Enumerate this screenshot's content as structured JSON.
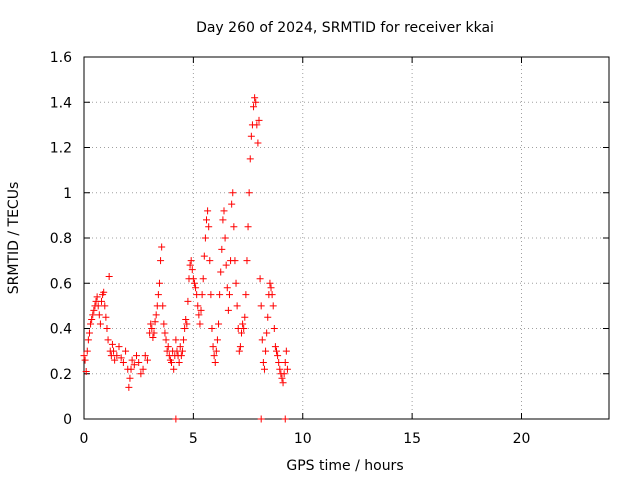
{
  "chart_data": {
    "type": "scatter",
    "title": "Day 260 of 2024, SRMTID for receiver kkai",
    "xlabel": "GPS time / hours",
    "ylabel": "SRMTID / TECUs",
    "xlim": [
      0,
      24
    ],
    "ylim": [
      0,
      1.6
    ],
    "x_ticks": [
      0,
      5,
      10,
      15,
      20
    ],
    "x_tick_labels": [
      "0",
      "5",
      "10",
      "15",
      "20"
    ],
    "y_ticks": [
      0,
      0.2,
      0.4,
      0.6,
      0.8,
      1.0,
      1.2,
      1.4,
      1.6
    ],
    "y_tick_labels": [
      "0",
      "0.2",
      "0.4",
      "0.6",
      "0.8",
      "1",
      "1.2",
      "1.4",
      "1.6"
    ],
    "grid": true,
    "marker": "+",
    "color": "#ff0000",
    "series": [
      {
        "name": "kkai",
        "points": [
          [
            0.0,
            0.28
          ],
          [
            0.05,
            0.26
          ],
          [
            0.1,
            0.21
          ],
          [
            0.15,
            0.3
          ],
          [
            0.2,
            0.35
          ],
          [
            0.25,
            0.38
          ],
          [
            0.3,
            0.42
          ],
          [
            0.35,
            0.44
          ],
          [
            0.4,
            0.46
          ],
          [
            0.45,
            0.48
          ],
          [
            0.5,
            0.5
          ],
          [
            0.55,
            0.52
          ],
          [
            0.6,
            0.54
          ],
          [
            0.65,
            0.5
          ],
          [
            0.7,
            0.46
          ],
          [
            0.75,
            0.42
          ],
          [
            0.8,
            0.52
          ],
          [
            0.85,
            0.55
          ],
          [
            0.9,
            0.56
          ],
          [
            0.95,
            0.5
          ],
          [
            1.0,
            0.45
          ],
          [
            1.05,
            0.4
          ],
          [
            1.1,
            0.35
          ],
          [
            1.15,
            0.63
          ],
          [
            1.2,
            0.3
          ],
          [
            1.25,
            0.28
          ],
          [
            1.3,
            0.33
          ],
          [
            1.35,
            0.3
          ],
          [
            1.4,
            0.26
          ],
          [
            1.5,
            0.28
          ],
          [
            1.6,
            0.32
          ],
          [
            1.7,
            0.27
          ],
          [
            1.8,
            0.25
          ],
          [
            1.9,
            0.3
          ],
          [
            2.0,
            0.22
          ],
          [
            2.05,
            0.14
          ],
          [
            2.1,
            0.18
          ],
          [
            2.15,
            0.22
          ],
          [
            2.2,
            0.26
          ],
          [
            2.3,
            0.24
          ],
          [
            2.4,
            0.28
          ],
          [
            2.5,
            0.25
          ],
          [
            2.6,
            0.2
          ],
          [
            2.7,
            0.22
          ],
          [
            2.8,
            0.28
          ],
          [
            2.9,
            0.26
          ],
          [
            3.0,
            0.38
          ],
          [
            3.05,
            0.42
          ],
          [
            3.1,
            0.4
          ],
          [
            3.15,
            0.36
          ],
          [
            3.2,
            0.38
          ],
          [
            3.25,
            0.43
          ],
          [
            3.3,
            0.46
          ],
          [
            3.35,
            0.5
          ],
          [
            3.4,
            0.55
          ],
          [
            3.45,
            0.6
          ],
          [
            3.5,
            0.7
          ],
          [
            3.55,
            0.76
          ],
          [
            3.6,
            0.5
          ],
          [
            3.65,
            0.42
          ],
          [
            3.7,
            0.38
          ],
          [
            3.75,
            0.35
          ],
          [
            3.8,
            0.3
          ],
          [
            3.85,
            0.32
          ],
          [
            3.9,
            0.28
          ],
          [
            3.95,
            0.26
          ],
          [
            4.0,
            0.25
          ],
          [
            4.05,
            0.3
          ],
          [
            4.1,
            0.22
          ],
          [
            4.15,
            0.28
          ],
          [
            4.2,
            0.35
          ],
          [
            4.25,
            0.3
          ],
          [
            4.3,
            0.28
          ],
          [
            4.35,
            0.25
          ],
          [
            4.4,
            0.32
          ],
          [
            4.45,
            0.28
          ],
          [
            4.5,
            0.3
          ],
          [
            4.55,
            0.35
          ],
          [
            4.6,
            0.4
          ],
          [
            4.65,
            0.44
          ],
          [
            4.7,
            0.42
          ],
          [
            4.75,
            0.52
          ],
          [
            4.8,
            0.62
          ],
          [
            4.85,
            0.68
          ],
          [
            4.9,
            0.7
          ],
          [
            4.95,
            0.66
          ],
          [
            5.0,
            0.62
          ],
          [
            5.05,
            0.6
          ],
          [
            5.1,
            0.58
          ],
          [
            5.15,
            0.55
          ],
          [
            5.2,
            0.5
          ],
          [
            5.25,
            0.46
          ],
          [
            5.3,
            0.42
          ],
          [
            5.35,
            0.48
          ],
          [
            5.4,
            0.55
          ],
          [
            5.45,
            0.62
          ],
          [
            5.5,
            0.72
          ],
          [
            5.55,
            0.8
          ],
          [
            5.6,
            0.88
          ],
          [
            5.65,
            0.92
          ],
          [
            5.7,
            0.85
          ],
          [
            5.75,
            0.7
          ],
          [
            5.8,
            0.55
          ],
          [
            5.85,
            0.4
          ],
          [
            5.9,
            0.32
          ],
          [
            5.95,
            0.28
          ],
          [
            6.0,
            0.25
          ],
          [
            6.05,
            0.3
          ],
          [
            6.1,
            0.35
          ],
          [
            6.15,
            0.42
          ],
          [
            6.2,
            0.55
          ],
          [
            6.25,
            0.65
          ],
          [
            6.3,
            0.75
          ],
          [
            6.35,
            0.88
          ],
          [
            6.4,
            0.92
          ],
          [
            6.45,
            0.8
          ],
          [
            6.5,
            0.68
          ],
          [
            6.55,
            0.58
          ],
          [
            6.6,
            0.48
          ],
          [
            6.65,
            0.55
          ],
          [
            6.7,
            0.7
          ],
          [
            6.75,
            0.95
          ],
          [
            6.8,
            1.0
          ],
          [
            6.85,
            0.85
          ],
          [
            6.9,
            0.7
          ],
          [
            6.95,
            0.6
          ],
          [
            7.0,
            0.5
          ],
          [
            7.05,
            0.4
          ],
          [
            7.1,
            0.3
          ],
          [
            7.15,
            0.32
          ],
          [
            7.2,
            0.38
          ],
          [
            7.25,
            0.42
          ],
          [
            7.3,
            0.4
          ],
          [
            7.35,
            0.45
          ],
          [
            7.4,
            0.55
          ],
          [
            7.45,
            0.7
          ],
          [
            7.5,
            0.85
          ],
          [
            7.55,
            1.0
          ],
          [
            7.6,
            1.15
          ],
          [
            7.65,
            1.25
          ],
          [
            7.7,
            1.3
          ],
          [
            7.75,
            1.38
          ],
          [
            7.8,
            1.42
          ],
          [
            7.85,
            1.4
          ],
          [
            7.9,
            1.3
          ],
          [
            7.95,
            1.22
          ],
          [
            8.0,
            1.32
          ],
          [
            8.05,
            0.62
          ],
          [
            8.1,
            0.5
          ],
          [
            8.15,
            0.35
          ],
          [
            8.2,
            0.25
          ],
          [
            8.25,
            0.22
          ],
          [
            8.3,
            0.3
          ],
          [
            8.35,
            0.38
          ],
          [
            8.4,
            0.45
          ],
          [
            8.45,
            0.55
          ],
          [
            8.5,
            0.6
          ],
          [
            8.55,
            0.58
          ],
          [
            8.6,
            0.55
          ],
          [
            8.65,
            0.5
          ],
          [
            8.7,
            0.4
          ],
          [
            8.75,
            0.32
          ],
          [
            8.8,
            0.3
          ],
          [
            8.85,
            0.28
          ],
          [
            8.9,
            0.25
          ],
          [
            8.95,
            0.22
          ],
          [
            9.0,
            0.2
          ],
          [
            9.05,
            0.18
          ],
          [
            9.1,
            0.16
          ],
          [
            9.15,
            0.2
          ],
          [
            9.2,
            0.25
          ],
          [
            9.25,
            0.3
          ],
          [
            9.3,
            0.22
          ],
          [
            4.2,
            0.0
          ],
          [
            8.1,
            0.0
          ],
          [
            9.2,
            0.0
          ]
        ]
      }
    ]
  }
}
